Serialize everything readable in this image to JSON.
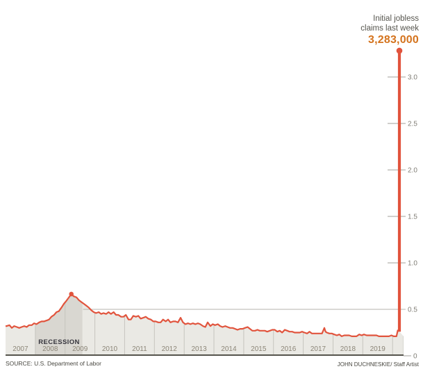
{
  "annotation": {
    "line1": "Initial jobless",
    "line2": "claims last week",
    "value": "3,283,000"
  },
  "footer": {
    "source": "SOURCE: U.S. Department of Labor",
    "credit": "JOHN DUCHNESKIE/ Staff Artist"
  },
  "chart_data": {
    "type": "line",
    "values_unit": "millions of initial jobless claims per week",
    "x_range": [
      2007,
      2020.37
    ],
    "y_range": [
      0,
      3.35
    ],
    "y_ticks": [
      "0.5",
      "1.0",
      "1.5",
      "2.0",
      "2.5",
      "3.0"
    ],
    "zero_label": "0",
    "gridline_value": 0.5,
    "legend": "none",
    "year_labels": [
      "2007",
      "2008",
      "2009",
      "2010",
      "2011",
      "2012",
      "2013",
      "2014",
      "2015",
      "2016",
      "2017",
      "2018",
      "2019"
    ],
    "recession": {
      "label": "RECESSION",
      "start": 2008.0,
      "end": 2009.58
    },
    "peak_2009": {
      "x": 2009.21,
      "value": 0.665
    },
    "spike": {
      "x": 2020.23,
      "value": 3.283,
      "base_value": 0.26
    },
    "series": [
      [
        2007.04,
        0.32
      ],
      [
        2007.13,
        0.33
      ],
      [
        2007.21,
        0.3
      ],
      [
        2007.29,
        0.32
      ],
      [
        2007.38,
        0.31
      ],
      [
        2007.46,
        0.3
      ],
      [
        2007.54,
        0.31
      ],
      [
        2007.63,
        0.32
      ],
      [
        2007.71,
        0.31
      ],
      [
        2007.79,
        0.33
      ],
      [
        2007.88,
        0.33
      ],
      [
        2007.96,
        0.35
      ],
      [
        2008.04,
        0.34
      ],
      [
        2008.13,
        0.36
      ],
      [
        2008.21,
        0.37
      ],
      [
        2008.29,
        0.37
      ],
      [
        2008.38,
        0.38
      ],
      [
        2008.46,
        0.39
      ],
      [
        2008.54,
        0.42
      ],
      [
        2008.63,
        0.44
      ],
      [
        2008.71,
        0.47
      ],
      [
        2008.79,
        0.48
      ],
      [
        2008.88,
        0.52
      ],
      [
        2008.96,
        0.56
      ],
      [
        2009.04,
        0.59
      ],
      [
        2009.13,
        0.63
      ],
      [
        2009.21,
        0.665
      ],
      [
        2009.29,
        0.64
      ],
      [
        2009.38,
        0.63
      ],
      [
        2009.46,
        0.6
      ],
      [
        2009.54,
        0.58
      ],
      [
        2009.63,
        0.56
      ],
      [
        2009.71,
        0.54
      ],
      [
        2009.79,
        0.52
      ],
      [
        2009.88,
        0.49
      ],
      [
        2009.96,
        0.47
      ],
      [
        2010.04,
        0.46
      ],
      [
        2010.13,
        0.47
      ],
      [
        2010.21,
        0.45
      ],
      [
        2010.29,
        0.46
      ],
      [
        2010.38,
        0.45
      ],
      [
        2010.46,
        0.47
      ],
      [
        2010.54,
        0.45
      ],
      [
        2010.63,
        0.47
      ],
      [
        2010.71,
        0.44
      ],
      [
        2010.79,
        0.44
      ],
      [
        2010.88,
        0.42
      ],
      [
        2010.96,
        0.42
      ],
      [
        2011.04,
        0.44
      ],
      [
        2011.13,
        0.39
      ],
      [
        2011.21,
        0.39
      ],
      [
        2011.29,
        0.43
      ],
      [
        2011.38,
        0.42
      ],
      [
        2011.46,
        0.43
      ],
      [
        2011.54,
        0.4
      ],
      [
        2011.63,
        0.41
      ],
      [
        2011.71,
        0.42
      ],
      [
        2011.79,
        0.4
      ],
      [
        2011.88,
        0.39
      ],
      [
        2011.96,
        0.37
      ],
      [
        2012.04,
        0.37
      ],
      [
        2012.13,
        0.36
      ],
      [
        2012.21,
        0.36
      ],
      [
        2012.29,
        0.39
      ],
      [
        2012.38,
        0.37
      ],
      [
        2012.46,
        0.39
      ],
      [
        2012.54,
        0.36
      ],
      [
        2012.63,
        0.37
      ],
      [
        2012.71,
        0.37
      ],
      [
        2012.79,
        0.36
      ],
      [
        2012.88,
        0.41
      ],
      [
        2012.96,
        0.36
      ],
      [
        2013.04,
        0.34
      ],
      [
        2013.13,
        0.35
      ],
      [
        2013.21,
        0.34
      ],
      [
        2013.29,
        0.35
      ],
      [
        2013.38,
        0.34
      ],
      [
        2013.46,
        0.35
      ],
      [
        2013.54,
        0.34
      ],
      [
        2013.63,
        0.32
      ],
      [
        2013.71,
        0.31
      ],
      [
        2013.79,
        0.36
      ],
      [
        2013.88,
        0.32
      ],
      [
        2013.96,
        0.34
      ],
      [
        2014.04,
        0.33
      ],
      [
        2014.13,
        0.34
      ],
      [
        2014.21,
        0.32
      ],
      [
        2014.29,
        0.31
      ],
      [
        2014.38,
        0.32
      ],
      [
        2014.46,
        0.31
      ],
      [
        2014.54,
        0.3
      ],
      [
        2014.63,
        0.3
      ],
      [
        2014.71,
        0.29
      ],
      [
        2014.79,
        0.28
      ],
      [
        2014.88,
        0.29
      ],
      [
        2014.96,
        0.29
      ],
      [
        2015.04,
        0.3
      ],
      [
        2015.13,
        0.31
      ],
      [
        2015.21,
        0.29
      ],
      [
        2015.29,
        0.27
      ],
      [
        2015.38,
        0.27
      ],
      [
        2015.46,
        0.28
      ],
      [
        2015.54,
        0.27
      ],
      [
        2015.63,
        0.27
      ],
      [
        2015.71,
        0.27
      ],
      [
        2015.79,
        0.26
      ],
      [
        2015.88,
        0.27
      ],
      [
        2015.96,
        0.28
      ],
      [
        2016.04,
        0.28
      ],
      [
        2016.13,
        0.26
      ],
      [
        2016.21,
        0.27
      ],
      [
        2016.29,
        0.25
      ],
      [
        2016.38,
        0.28
      ],
      [
        2016.46,
        0.27
      ],
      [
        2016.54,
        0.26
      ],
      [
        2016.63,
        0.26
      ],
      [
        2016.71,
        0.25
      ],
      [
        2016.79,
        0.25
      ],
      [
        2016.88,
        0.25
      ],
      [
        2016.96,
        0.26
      ],
      [
        2017.04,
        0.25
      ],
      [
        2017.13,
        0.24
      ],
      [
        2017.21,
        0.26
      ],
      [
        2017.29,
        0.24
      ],
      [
        2017.38,
        0.24
      ],
      [
        2017.46,
        0.24
      ],
      [
        2017.54,
        0.24
      ],
      [
        2017.63,
        0.24
      ],
      [
        2017.71,
        0.3
      ],
      [
        2017.75,
        0.26
      ],
      [
        2017.79,
        0.25
      ],
      [
        2017.88,
        0.24
      ],
      [
        2017.96,
        0.24
      ],
      [
        2018.04,
        0.23
      ],
      [
        2018.13,
        0.22
      ],
      [
        2018.21,
        0.23
      ],
      [
        2018.29,
        0.21
      ],
      [
        2018.38,
        0.22
      ],
      [
        2018.46,
        0.22
      ],
      [
        2018.54,
        0.22
      ],
      [
        2018.63,
        0.21
      ],
      [
        2018.71,
        0.21
      ],
      [
        2018.79,
        0.21
      ],
      [
        2018.88,
        0.23
      ],
      [
        2018.96,
        0.22
      ],
      [
        2019.04,
        0.23
      ],
      [
        2019.13,
        0.22
      ],
      [
        2019.21,
        0.22
      ],
      [
        2019.29,
        0.22
      ],
      [
        2019.38,
        0.22
      ],
      [
        2019.46,
        0.22
      ],
      [
        2019.54,
        0.21
      ],
      [
        2019.63,
        0.21
      ],
      [
        2019.71,
        0.21
      ],
      [
        2019.79,
        0.21
      ],
      [
        2019.88,
        0.21
      ],
      [
        2019.96,
        0.22
      ],
      [
        2020.04,
        0.21
      ],
      [
        2020.13,
        0.21
      ],
      [
        2020.18,
        0.28
      ],
      [
        2020.23,
        3.283
      ]
    ],
    "colors": {
      "line": "#e1543d",
      "band": "#eae9e4",
      "recession_band": "#d9d7d1",
      "separator": "#c6c5be",
      "axis": "#55534c",
      "tick": "#a19f98",
      "tick_text": "#807e76",
      "year_text": "#8b8577",
      "annotation_text": "#56554e",
      "annotation_value": "#d4731d",
      "footer_text": "#47463f",
      "recession_text": "#35343c"
    }
  }
}
